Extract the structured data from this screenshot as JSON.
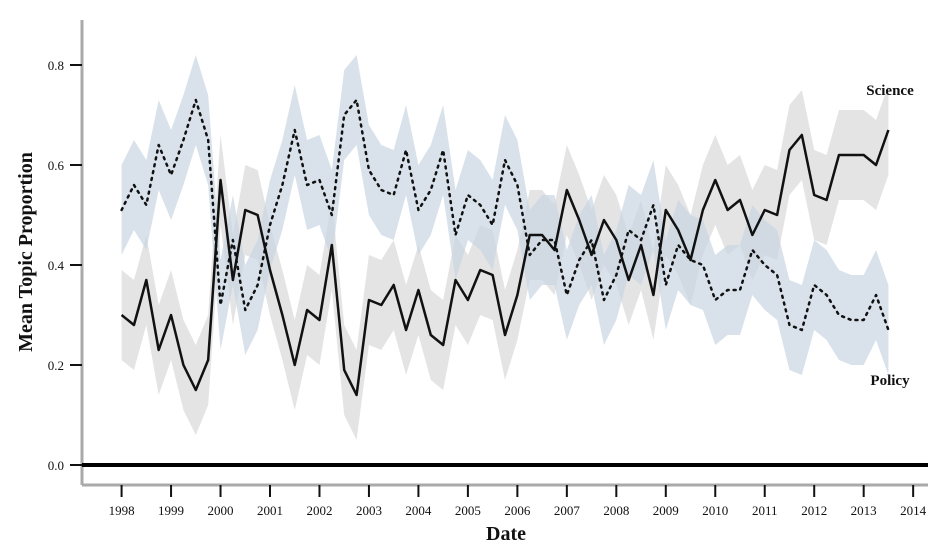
{
  "chart_data": {
    "type": "line",
    "xlabel": "Date",
    "ylabel": "Mean Topic Proportion",
    "x": [
      1998,
      1998.25,
      1998.5,
      1998.75,
      1999,
      1999.25,
      1999.5,
      1999.75,
      2000,
      2000.25,
      2000.5,
      2000.75,
      2001,
      2001.25,
      2001.5,
      2001.75,
      2002,
      2002.25,
      2002.5,
      2002.75,
      2003,
      2003.25,
      2003.5,
      2003.75,
      2004,
      2004.25,
      2004.5,
      2004.75,
      2005,
      2005.25,
      2005.5,
      2005.75,
      2006,
      2006.25,
      2006.5,
      2006.75,
      2007,
      2007.25,
      2007.5,
      2007.75,
      2008,
      2008.25,
      2008.5,
      2008.75,
      2009,
      2009.25,
      2009.5,
      2009.75,
      2010,
      2010.25,
      2010.5,
      2010.75,
      2011,
      2011.25,
      2011.5,
      2011.75,
      2012,
      2012.25,
      2012.5,
      2012.75,
      2013,
      2013.25,
      2013.5
    ],
    "series": [
      {
        "name": "Science",
        "color": "#111111",
        "dash": "solid",
        "band_color": "#d9d9d9",
        "ci_halfwidth": 0.09,
        "values": [
          0.3,
          0.28,
          0.37,
          0.23,
          0.3,
          0.2,
          0.15,
          0.21,
          0.57,
          0.37,
          0.51,
          0.5,
          0.39,
          0.3,
          0.2,
          0.31,
          0.29,
          0.44,
          0.19,
          0.14,
          0.33,
          0.32,
          0.36,
          0.27,
          0.35,
          0.26,
          0.24,
          0.37,
          0.33,
          0.39,
          0.38,
          0.26,
          0.34,
          0.46,
          0.46,
          0.43,
          0.55,
          0.49,
          0.42,
          0.49,
          0.45,
          0.37,
          0.44,
          0.34,
          0.51,
          0.47,
          0.41,
          0.51,
          0.57,
          0.51,
          0.53,
          0.46,
          0.51,
          0.5,
          0.63,
          0.66,
          0.54,
          0.53,
          0.62,
          0.62,
          0.62,
          0.6,
          0.67
        ]
      },
      {
        "name": "Policy",
        "color": "#111111",
        "dash": "dotted",
        "band_color": "#c9d6e3",
        "ci_halfwidth": 0.09,
        "values": [
          0.51,
          0.56,
          0.52,
          0.64,
          0.58,
          0.65,
          0.73,
          0.65,
          0.32,
          0.45,
          0.31,
          0.36,
          0.48,
          0.56,
          0.67,
          0.56,
          0.57,
          0.5,
          0.7,
          0.73,
          0.59,
          0.55,
          0.54,
          0.63,
          0.51,
          0.55,
          0.63,
          0.46,
          0.54,
          0.52,
          0.48,
          0.61,
          0.56,
          0.42,
          0.45,
          0.45,
          0.34,
          0.41,
          0.45,
          0.33,
          0.38,
          0.47,
          0.45,
          0.52,
          0.36,
          0.44,
          0.41,
          0.4,
          0.33,
          0.35,
          0.35,
          0.43,
          0.4,
          0.38,
          0.28,
          0.27,
          0.36,
          0.34,
          0.3,
          0.29,
          0.29,
          0.34,
          0.27
        ]
      }
    ],
    "hline": 0,
    "xlim": [
      1997.2,
      2014.3
    ],
    "ylim": [
      -0.04,
      0.89
    ],
    "xticks": [
      1998,
      1999,
      2000,
      2001,
      2002,
      2003,
      2004,
      2005,
      2006,
      2007,
      2008,
      2009,
      2010,
      2011,
      2012,
      2013,
      2014
    ],
    "yticks": [
      {
        "value": 0,
        "label": "0.0"
      },
      0.2,
      0.4,
      0.6,
      0.8
    ]
  }
}
